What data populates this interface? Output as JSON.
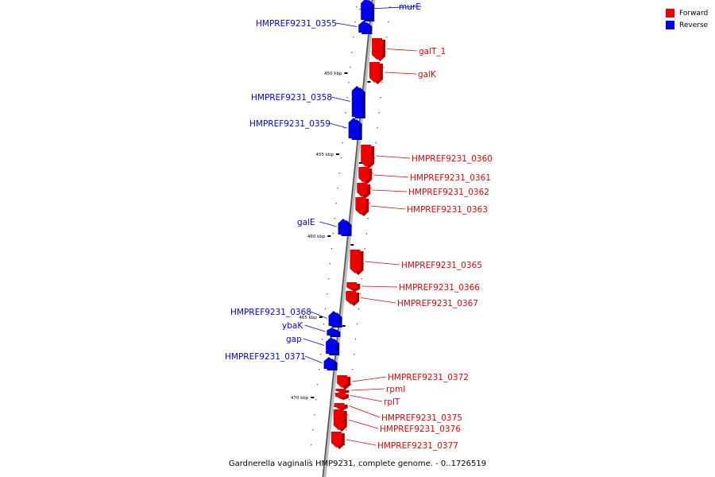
{
  "legend": {
    "items": [
      {
        "label": "Forward",
        "color": "#ee0000"
      },
      {
        "label": "Reverse",
        "color": "#0000ee"
      }
    ]
  },
  "footer": {
    "caption": "Gardnerella vaginalis HMP9231, complete genome. - 0..1726519"
  },
  "scale_labels": [
    "450 kbp",
    "455 kbp",
    "460 kbp",
    "465 kbp",
    "470 kbp"
  ],
  "genes": [
    {
      "name": "murE",
      "strand": "reverse"
    },
    {
      "name": "HMPREF9231_0355",
      "strand": "reverse"
    },
    {
      "name": "galT_1",
      "strand": "forward"
    },
    {
      "name": "galK",
      "strand": "forward"
    },
    {
      "name": "HMPREF9231_0358",
      "strand": "reverse"
    },
    {
      "name": "HMPREF9231_0359",
      "strand": "reverse"
    },
    {
      "name": "HMPREF9231_0360",
      "strand": "forward"
    },
    {
      "name": "HMPREF9231_0361",
      "strand": "forward"
    },
    {
      "name": "HMPREF9231_0362",
      "strand": "forward"
    },
    {
      "name": "HMPREF9231_0363",
      "strand": "forward"
    },
    {
      "name": "galE",
      "strand": "reverse"
    },
    {
      "name": "HMPREF9231_0365",
      "strand": "forward"
    },
    {
      "name": "HMPREF9231_0366",
      "strand": "forward"
    },
    {
      "name": "HMPREF9231_0367",
      "strand": "forward"
    },
    {
      "name": "HMPREF9231_0368",
      "strand": "reverse"
    },
    {
      "name": "ybaK",
      "strand": "reverse"
    },
    {
      "name": "gap",
      "strand": "reverse"
    },
    {
      "name": "HMPREF9231_0371",
      "strand": "reverse"
    },
    {
      "name": "HMPREF9231_0372",
      "strand": "forward"
    },
    {
      "name": "rpmI",
      "strand": "forward"
    },
    {
      "name": "rplT",
      "strand": "forward"
    },
    {
      "name": "HMPREF9231_0375",
      "strand": "forward"
    },
    {
      "name": "HMPREF9231_0376",
      "strand": "forward"
    },
    {
      "name": "HMPREF9231_0377",
      "strand": "forward"
    }
  ]
}
